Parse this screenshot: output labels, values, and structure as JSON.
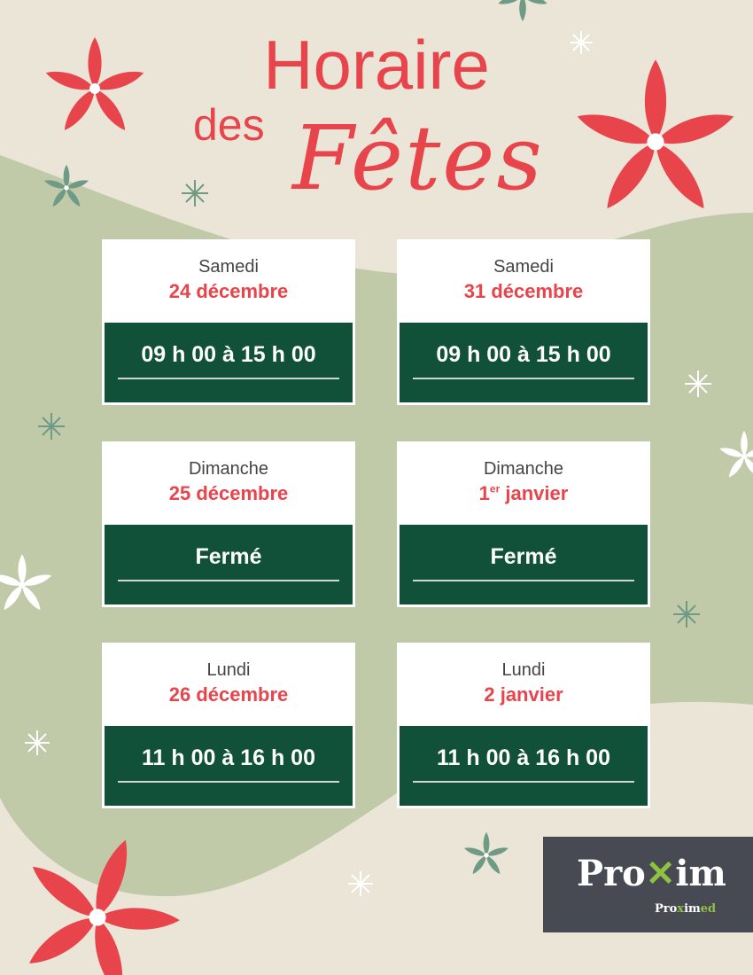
{
  "title": {
    "line1": "Horaire",
    "line2": "des",
    "line3": "Fêtes"
  },
  "cards": [
    {
      "day": "Samedi",
      "date": "24 décembre",
      "sup": "",
      "hours": "09 h 00 à 15 h 00"
    },
    {
      "day": "Samedi",
      "date": "31 décembre",
      "sup": "",
      "hours": "09 h 00 à 15 h 00"
    },
    {
      "day": "Dimanche",
      "date": "25 décembre",
      "sup": "",
      "hours": "Fermé"
    },
    {
      "day": "Dimanche",
      "date": "1",
      "sup": "er",
      "date_rest": " janvier",
      "hours": "Fermé"
    },
    {
      "day": "Lundi",
      "date": "26 décembre",
      "sup": "",
      "hours": "11 h 00 à 16 h 00"
    },
    {
      "day": "Lundi",
      "date": "2 janvier",
      "sup": "",
      "hours": "11 h 00 à 16 h 00"
    }
  ],
  "logo": {
    "brand": "Proxim",
    "sub": "Proximed"
  },
  "colors": {
    "background": "#ebe5d7",
    "blob": "#c0c9a8",
    "accent": "#e8444b",
    "green": "#11513a",
    "logo_bg": "#474a53",
    "logo_green": "#8fc33f"
  }
}
